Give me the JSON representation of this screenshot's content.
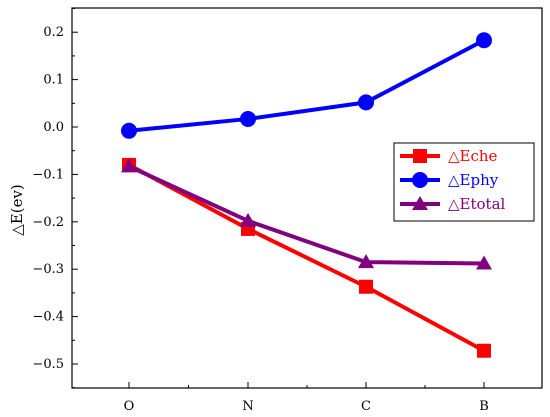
{
  "chart_data": {
    "type": "line",
    "categories": [
      "O",
      "N",
      "C",
      "B"
    ],
    "ylabel": "△E(ev)",
    "xlabel": "",
    "ylim": [
      -0.55,
      0.25
    ],
    "yticks": [
      0.2,
      0.1,
      0.0,
      -0.1,
      -0.2,
      -0.3,
      -0.4,
      -0.5
    ],
    "ytick_labels": [
      "0.2",
      "0.1",
      "0.0",
      "−0.1",
      "−0.2",
      "−0.3",
      "−0.4",
      "−0.5"
    ],
    "legend_position": "center-right",
    "grid": false,
    "series": [
      {
        "name": "△Eche",
        "color": "#ff0000",
        "marker": "square",
        "values": [
          -0.08,
          -0.215,
          -0.337,
          -0.472
        ]
      },
      {
        "name": "△Ephy",
        "color": "#0000ff",
        "marker": "circle",
        "values": [
          -0.008,
          0.017,
          0.052,
          0.183
        ]
      },
      {
        "name": "△Etotal",
        "color": "#800080",
        "marker": "triangle",
        "values": [
          -0.083,
          -0.198,
          -0.285,
          -0.288
        ]
      }
    ]
  }
}
